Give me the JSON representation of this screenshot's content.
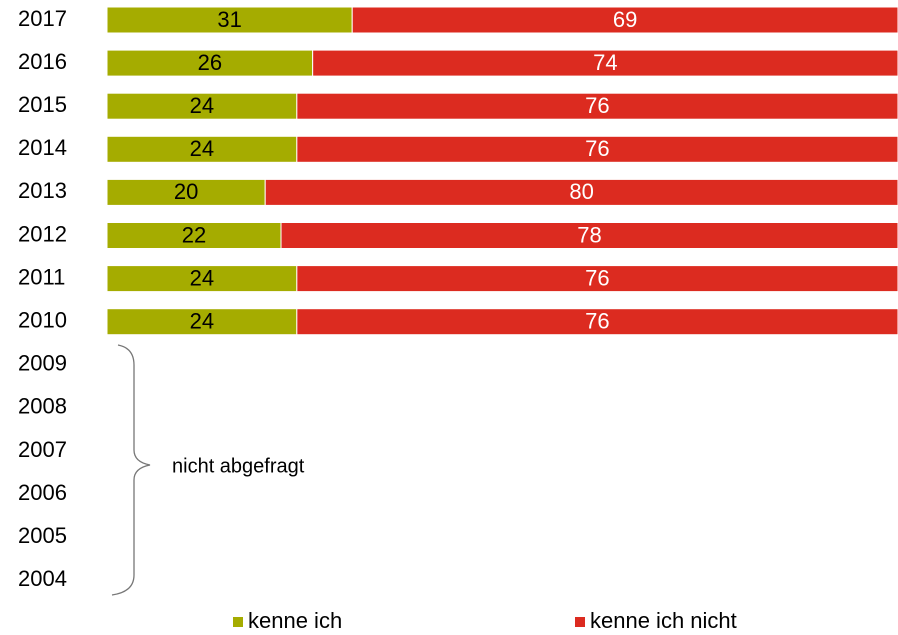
{
  "chart_data": {
    "type": "stacked-bar-horizontal",
    "categories": [
      "2017",
      "2016",
      "2015",
      "2014",
      "2013",
      "2012",
      "2011",
      "2010",
      "2009",
      "2008",
      "2007",
      "2006",
      "2005",
      "2004"
    ],
    "series": [
      {
        "name": "kenne ich",
        "color": "#a5ac00",
        "values": [
          31,
          26,
          24,
          24,
          20,
          22,
          24,
          24,
          null,
          null,
          null,
          null,
          null,
          null
        ]
      },
      {
        "name": "kenne ich nicht",
        "color": "#dc2b20",
        "values": [
          69,
          74,
          76,
          76,
          80,
          78,
          76,
          76,
          null,
          null,
          null,
          null,
          null,
          null
        ]
      }
    ],
    "xlim": [
      0,
      100
    ],
    "annotation": "nicht abgefragt"
  }
}
